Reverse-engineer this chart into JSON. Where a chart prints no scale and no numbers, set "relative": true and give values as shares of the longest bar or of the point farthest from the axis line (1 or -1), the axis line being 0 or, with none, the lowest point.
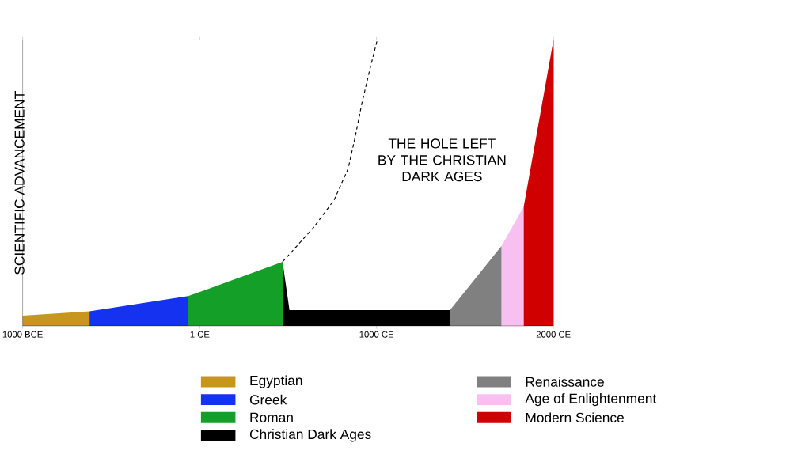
{
  "chart_data": {
    "type": "area",
    "relative": true,
    "ylabel": "SCIENTIFIC ADVANCEMENT",
    "xlim": [
      -1000,
      2000
    ],
    "xticks": [
      {
        "value": -1000,
        "label": "1000 BCE"
      },
      {
        "value": 1,
        "label": "1 CE"
      },
      {
        "value": 1000,
        "label": "1000 CE"
      },
      {
        "value": 2000,
        "label": "2000 CE"
      }
    ],
    "legend": "bottom",
    "grid": false,
    "annotations": [
      "THE HOLE LEFT BY THE CHRISTIAN DARK AGES"
    ],
    "series": [
      {
        "name": "Egyptian",
        "color": "#c8961e",
        "x": [
          -1000,
          -622
        ],
        "values": [
          0.036,
          0.051
        ]
      },
      {
        "name": "Greek",
        "color": "#1432f0",
        "x": [
          -622,
          -65
        ],
        "values": [
          0.051,
          0.104
        ]
      },
      {
        "name": "Roman",
        "color": "#14a028",
        "x": [
          -65,
          469
        ],
        "values": [
          0.104,
          0.224
        ]
      },
      {
        "name": "Christian Dark Ages",
        "color": "#000000",
        "x": [
          469,
          508,
          1415
        ],
        "values": [
          0.224,
          0.055,
          0.055
        ]
      },
      {
        "name": "Renaissance",
        "color": "#808080",
        "x": [
          1415,
          1707
        ],
        "values": [
          0.055,
          0.28
        ]
      },
      {
        "name": "Age of Enlightenment",
        "color": "#f8c0f0",
        "x": [
          1707,
          1832
        ],
        "values": [
          0.28,
          0.417
        ]
      },
      {
        "name": "Modern Science",
        "color": "#d00000",
        "x": [
          1832,
          2000
        ],
        "values": [
          0.417,
          1
        ]
      },
      {
        "type": "line",
        "line_style": "dashed",
        "color": "#000000",
        "x": [
          469,
          644,
          761,
          839,
          878,
          917,
          963,
          1002
        ],
        "values": [
          0.224,
          0.344,
          0.441,
          0.549,
          0.657,
          0.778,
          0.899,
          0.995
        ]
      }
    ]
  }
}
